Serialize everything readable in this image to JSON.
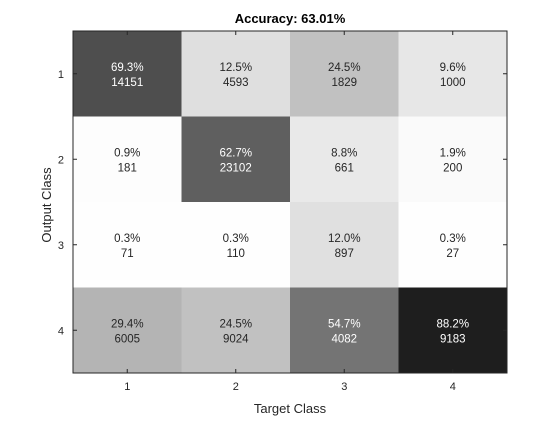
{
  "chart_data": {
    "type": "heatmap",
    "title": "Accuracy: 63.01%",
    "xlabel": "Target Class",
    "ylabel": "Output Class",
    "x_categories": [
      "1",
      "2",
      "3",
      "4"
    ],
    "y_categories": [
      "1",
      "2",
      "3",
      "4"
    ],
    "colormap": "gray-reversed",
    "cells": [
      [
        {
          "percent": "69.3%",
          "count": "14151",
          "shade": 0.693
        },
        {
          "percent": "12.5%",
          "count": "4593",
          "shade": 0.125
        },
        {
          "percent": "24.5%",
          "count": "1829",
          "shade": 0.245
        },
        {
          "percent": "9.6%",
          "count": "1000",
          "shade": 0.096
        }
      ],
      [
        {
          "percent": "0.9%",
          "count": "181",
          "shade": 0.009
        },
        {
          "percent": "62.7%",
          "count": "23102",
          "shade": 0.627
        },
        {
          "percent": "8.8%",
          "count": "661",
          "shade": 0.088
        },
        {
          "percent": "1.9%",
          "count": "200",
          "shade": 0.019
        }
      ],
      [
        {
          "percent": "0.3%",
          "count": "71",
          "shade": 0.003
        },
        {
          "percent": "0.3%",
          "count": "110",
          "shade": 0.003
        },
        {
          "percent": "12.0%",
          "count": "897",
          "shade": 0.12
        },
        {
          "percent": "0.3%",
          "count": "27",
          "shade": 0.003
        }
      ],
      [
        {
          "percent": "29.4%",
          "count": "6005",
          "shade": 0.294
        },
        {
          "percent": "24.5%",
          "count": "9024",
          "shade": 0.245
        },
        {
          "percent": "54.7%",
          "count": "4082",
          "shade": 0.547
        },
        {
          "percent": "88.2%",
          "count": "9183",
          "shade": 0.882
        }
      ]
    ]
  }
}
